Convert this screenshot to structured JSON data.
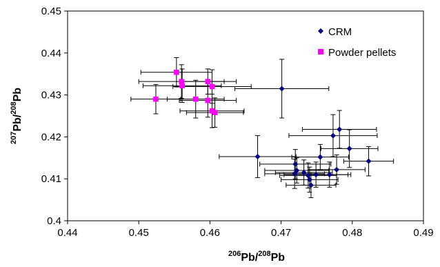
{
  "chart_data": {
    "type": "scatter",
    "title": "",
    "xlabel": {
      "sup1": "206",
      "base1": "Pb/",
      "sup2": "208",
      "base2": "Pb"
    },
    "ylabel": {
      "sup1": "207",
      "base1": "Pb/",
      "sup2": "208",
      "base2": "Pb"
    },
    "xlim": [
      0.44,
      0.49
    ],
    "ylim": [
      0.4,
      0.45
    ],
    "x_ticks": [
      "0.44",
      "0.45",
      "0.46",
      "0.47",
      "0.48",
      "0.49"
    ],
    "y_ticks": [
      "0.4",
      "0.41",
      "0.42",
      "0.43",
      "0.44",
      "0.45"
    ],
    "grid": false,
    "legend_position": "top-right",
    "series": [
      {
        "name": "CRM",
        "color": "#000080",
        "marker": "diamond",
        "points": [
          {
            "x": 0.4701,
            "y": 0.4315,
            "xerr": 0.0066,
            "yerr": 0.007
          },
          {
            "x": 0.4667,
            "y": 0.4153,
            "xerr": 0.0054,
            "yerr": 0.005
          },
          {
            "x": 0.4782,
            "y": 0.4218,
            "xerr": 0.0052,
            "yerr": 0.0045
          },
          {
            "x": 0.4773,
            "y": 0.4203,
            "xerr": 0.0062,
            "yerr": 0.005
          },
          {
            "x": 0.4796,
            "y": 0.4172,
            "xerr": 0.004,
            "yerr": 0.0045
          },
          {
            "x": 0.4823,
            "y": 0.4142,
            "xerr": 0.0035,
            "yerr": 0.0035
          },
          {
            "x": 0.4755,
            "y": 0.4152,
            "xerr": 0.004,
            "yerr": 0.003
          },
          {
            "x": 0.472,
            "y": 0.4135,
            "xerr": 0.005,
            "yerr": 0.0035
          },
          {
            "x": 0.4722,
            "y": 0.412,
            "xerr": 0.0045,
            "yerr": 0.003
          },
          {
            "x": 0.4719,
            "y": 0.4112,
            "xerr": 0.0042,
            "yerr": 0.0035
          },
          {
            "x": 0.4738,
            "y": 0.4108,
            "xerr": 0.004,
            "yerr": 0.003
          },
          {
            "x": 0.4749,
            "y": 0.411,
            "xerr": 0.0045,
            "yerr": 0.003
          },
          {
            "x": 0.474,
            "y": 0.4098,
            "xerr": 0.004,
            "yerr": 0.003
          },
          {
            "x": 0.4742,
            "y": 0.4085,
            "xerr": 0.0035,
            "yerr": 0.003
          },
          {
            "x": 0.4768,
            "y": 0.411,
            "xerr": 0.003,
            "yerr": 0.003
          },
          {
            "x": 0.4778,
            "y": 0.4122,
            "xerr": 0.004,
            "yerr": 0.0035
          },
          {
            "x": 0.4732,
            "y": 0.4115,
            "xerr": 0.004,
            "yerr": 0.003
          }
        ]
      },
      {
        "name": "Powder pellets",
        "color": "#ff00ff",
        "marker": "square",
        "points": [
          {
            "x": 0.4553,
            "y": 0.4354,
            "xerr": 0.005,
            "yerr": 0.0035
          },
          {
            "x": 0.456,
            "y": 0.4332,
            "xerr": 0.006,
            "yerr": 0.004
          },
          {
            "x": 0.4561,
            "y": 0.4322,
            "xerr": 0.0055,
            "yerr": 0.004
          },
          {
            "x": 0.4524,
            "y": 0.429,
            "xerr": 0.0035,
            "yerr": 0.0035
          },
          {
            "x": 0.458,
            "y": 0.429,
            "xerr": 0.004,
            "yerr": 0.0045
          },
          {
            "x": 0.4597,
            "y": 0.4332,
            "xerr": 0.004,
            "yerr": 0.003
          },
          {
            "x": 0.4603,
            "y": 0.432,
            "xerr": 0.0055,
            "yerr": 0.004
          },
          {
            "x": 0.4597,
            "y": 0.4287,
            "xerr": 0.004,
            "yerr": 0.004
          },
          {
            "x": 0.4603,
            "y": 0.4262,
            "xerr": 0.0045,
            "yerr": 0.004
          },
          {
            "x": 0.4607,
            "y": 0.4258,
            "xerr": 0.004,
            "yerr": 0.0035
          }
        ]
      }
    ]
  }
}
